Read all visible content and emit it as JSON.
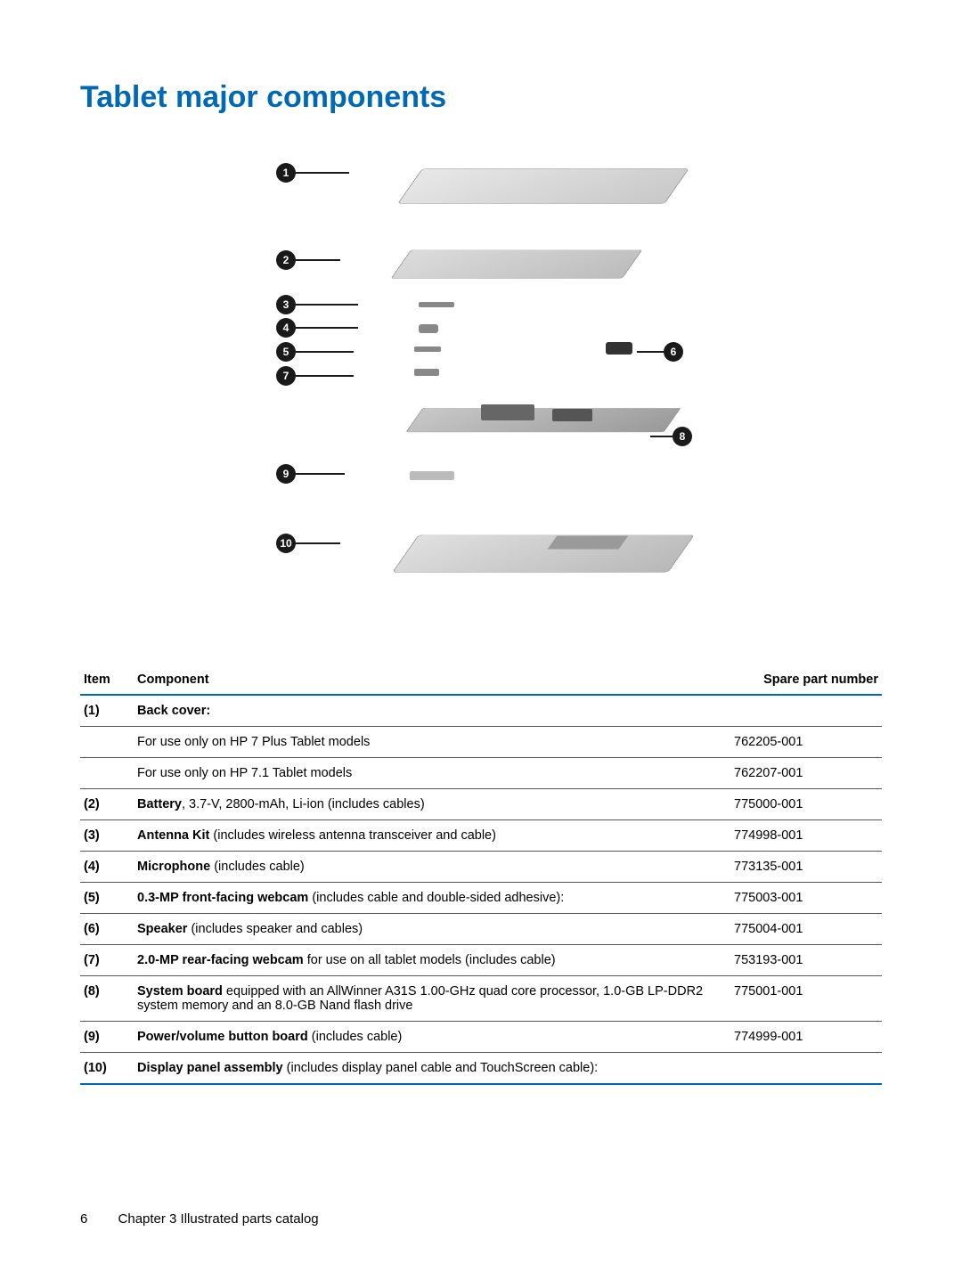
{
  "colors": {
    "heading": "#0069b4",
    "rule": "#0069b4",
    "text": "#000000"
  },
  "heading": "Tablet major components",
  "diagram": {
    "callouts": [
      "1",
      "2",
      "3",
      "4",
      "5",
      "6",
      "7",
      "8",
      "9",
      "10"
    ]
  },
  "table": {
    "headers": {
      "item": "Item",
      "component": "Component",
      "spare": "Spare part number"
    },
    "rows": [
      {
        "item": "(1)",
        "component_bold": "Back cover:",
        "component_rest": "",
        "spare": ""
      },
      {
        "item": "",
        "component_bold": "",
        "component_rest": "For use only on HP 7 Plus Tablet models",
        "spare": "762205-001"
      },
      {
        "item": "",
        "component_bold": "",
        "component_rest": "For use only on HP 7.1 Tablet models",
        "spare": "762207-001"
      },
      {
        "item": "(2)",
        "component_bold": "Battery",
        "component_rest": ", 3.7-V, 2800-mAh, Li-ion (includes cables)",
        "spare": "775000-001"
      },
      {
        "item": "(3)",
        "component_bold": "Antenna Kit",
        "component_rest": " (includes wireless antenna transceiver and cable)",
        "spare": "774998-001"
      },
      {
        "item": "(4)",
        "component_bold": "Microphone",
        "component_rest": " (includes cable)",
        "spare": "773135-001"
      },
      {
        "item": "(5)",
        "component_bold": "0.3-MP front-facing webcam",
        "component_rest": " (includes cable and double-sided adhesive):",
        "spare": "775003-001"
      },
      {
        "item": "(6)",
        "component_bold": "Speaker",
        "component_rest": " (includes speaker and cables)",
        "spare": "775004-001"
      },
      {
        "item": "(7)",
        "component_bold": "2.0-MP rear-facing webcam",
        "component_rest": " for use on all tablet models (includes cable)",
        "spare": "753193-001"
      },
      {
        "item": "(8)",
        "component_bold": "System board",
        "component_rest": " equipped with an AllWinner A31S 1.00-GHz quad core processor, 1.0-GB LP-DDR2 system memory and an 8.0-GB Nand flash drive",
        "spare": "775001-001"
      },
      {
        "item": "(9)",
        "component_bold": "Power/volume button board",
        "component_rest": " (includes cable)",
        "spare": "774999-001"
      },
      {
        "item": "(10)",
        "component_bold": "Display panel assembly",
        "component_rest": " (includes display panel cable and TouchScreen cable):",
        "spare": ""
      }
    ]
  },
  "footer": {
    "page": "6",
    "chapter": "Chapter 3   Illustrated parts catalog"
  }
}
